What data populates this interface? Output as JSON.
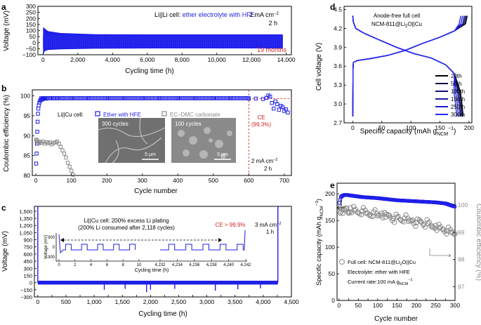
{
  "figure": {
    "width": 685,
    "height": 463
  },
  "colors": {
    "blue": "#1f1fe8",
    "gray": "#8a8a8a",
    "red": "#d22424",
    "black": "#000000"
  },
  "chart_data": [
    {
      "panel": "a",
      "type": "line",
      "xlabel": "Cycling time (h)",
      "ylabel": "Voltage (mV)",
      "xlim": [
        -300,
        14300
      ],
      "ylim": [
        -100,
        300
      ],
      "xticks": [
        0,
        2000,
        4000,
        6000,
        8000,
        10000,
        12000,
        14000
      ],
      "xtick_labels": [
        "0",
        "2,000",
        "4,000",
        "6,000",
        "8,000",
        "10,000",
        "12,000",
        "14,000"
      ],
      "yticks": [
        -100,
        -50,
        0,
        50,
        100,
        150,
        200,
        250,
        300
      ],
      "ytick_labels": [
        "−100",
        "−50",
        "0",
        "50",
        "100",
        "150",
        "200",
        "250",
        "300"
      ],
      "series": [
        {
          "name": "",
          "color": "#1f1fe8",
          "envelope": [
            [
              0,
              -100,
              130
            ],
            [
              100,
              -70,
              115
            ],
            [
              300,
              -60,
              95
            ],
            [
              1000,
              -55,
              80
            ],
            [
              3000,
              -50,
              70
            ],
            [
              6000,
              -48,
              68
            ],
            [
              10000,
              -48,
              68
            ],
            [
              13800,
              -48,
              68
            ]
          ]
        }
      ],
      "annotations": {
        "cell": "Li||Li cell: ",
        "electrolyte": "ether electrolyte with HFE",
        "current": "2 mA cm",
        "current_sup": "−2",
        "time": "2 h",
        "duration": "19 months"
      }
    },
    {
      "panel": "b",
      "type": "scatter",
      "xlabel": "Cycle number",
      "ylabel": "Coulombic efficiency (%)",
      "xlim": [
        -10,
        720
      ],
      "ylim": [
        80,
        101.5
      ],
      "xticks": [
        0,
        100,
        200,
        300,
        400,
        500,
        600,
        700
      ],
      "xtick_labels": [
        "0",
        "100",
        "200",
        "300",
        "400",
        "500",
        "600",
        "700"
      ],
      "yticks": [
        80,
        85,
        90,
        95,
        100
      ],
      "ytick_labels": [
        "80",
        "85",
        "90",
        "95",
        "100"
      ],
      "series": [
        {
          "name": "Ether with HFE",
          "color": "#1f1fe8",
          "marker": "square",
          "x": [
            1,
            2,
            3,
            4,
            5,
            6,
            7,
            8,
            10,
            12,
            14,
            17,
            20,
            25,
            30,
            40,
            50,
            60,
            75,
            100,
            150,
            200,
            250,
            300,
            350,
            400,
            450,
            500,
            550,
            600,
            620,
            640,
            650,
            655,
            660,
            665,
            670,
            675,
            680,
            685,
            690,
            695,
            700,
            705,
            710
          ],
          "y": [
            83,
            85.5,
            88,
            91,
            93.5,
            95.5,
            96.8,
            97.6,
            98.3,
            98.8,
            99.0,
            99.1,
            99.2,
            99.3,
            99.3,
            99.4,
            99.4,
            99.4,
            99.4,
            99.4,
            99.4,
            99.4,
            99.4,
            99.4,
            99.4,
            99.4,
            99.4,
            99.4,
            99.4,
            99.3,
            99.3,
            99.2,
            99.5,
            100.1,
            99.8,
            98.2,
            96.8,
            98.6,
            97.9,
            96.5,
            97.5,
            97.2,
            96.2,
            96.6,
            95.8
          ]
        },
        {
          "name": "EC–DMC carbonate",
          "color": "#8a8a8a",
          "marker": "square",
          "x": [
            1,
            3,
            5,
            8,
            10,
            15,
            20,
            25,
            30,
            35,
            40,
            45,
            50,
            55,
            60,
            65,
            70,
            75,
            80,
            85,
            90,
            95,
            100,
            105
          ],
          "y": [
            89,
            88.8,
            88.5,
            88,
            88.5,
            88.2,
            88.5,
            88,
            88.4,
            88.1,
            88.3,
            87.8,
            88.2,
            88.3,
            88.5,
            88,
            87.2,
            86.3,
            85.5,
            84.5,
            83.2,
            82.2,
            81.2,
            80.2
          ]
        }
      ],
      "cutoff_x": 600,
      "cutoff_y": 99.3,
      "annotations": {
        "cell": "Li||Cu cell:",
        "ce_label": "CE",
        "ce_value": "(99.3%)",
        "current": "2 mA cm",
        "current_sup": "−2",
        "time": "2 h",
        "inset1_label": "300 cycles",
        "inset2_label": "100 cycles",
        "scale1": "5 μm",
        "scale2": "5 μm"
      }
    },
    {
      "panel": "c",
      "type": "line",
      "xlabel": "Cycling time (h)",
      "ylabel": "Voltage (mV)",
      "xlim": [
        -60,
        4500
      ],
      "ylim": [
        -300,
        1600
      ],
      "xticks": [
        0,
        250,
        500,
        750,
        1000,
        1250,
        1500,
        1750,
        2000,
        2250,
        2500,
        2750,
        3000,
        3250,
        3500,
        3750,
        4000,
        4250,
        4500
      ],
      "xtick_labels": [
        "0",
        "",
        "500",
        "",
        "1,000",
        "",
        "1,500",
        "",
        "2,000",
        "",
        "2,500",
        "",
        "3,000",
        "",
        "3,500",
        "",
        "4,000",
        "",
        "4,500"
      ],
      "yticks": [
        -300,
        -150,
        0,
        150,
        300,
        450,
        600,
        750,
        900,
        1050,
        1200,
        1350,
        1500
      ],
      "ytick_labels": [
        "−300",
        "−150",
        "0",
        "150",
        "300",
        "450",
        "600",
        "750",
        "900",
        "1,050",
        "1,200",
        "1,350",
        "1,500"
      ],
      "series": [
        {
          "name": "",
          "color": "#1f1fe8",
          "band": [
            -40,
            40
          ],
          "spikes": [
            [
              0,
              1600
            ],
            [
              1180,
              -150
            ],
            [
              1550,
              -130
            ],
            [
              1930,
              -200
            ],
            [
              2000,
              -150
            ],
            [
              2430,
              -130
            ],
            [
              3150,
              -170
            ],
            [
              3550,
              -140
            ],
            [
              3950,
              -120
            ],
            [
              4260,
              1600
            ]
          ]
        }
      ],
      "annotations": {
        "title_line1": "Li||Cu cell: 200% excess Li plating",
        "title_line2": "(200% Li consumed after 2,118 cycles)",
        "ce": "CE > 99.9%",
        "current": "3 mA cm",
        "current_sup": "−2",
        "time": "1 h",
        "inset_ylabel": "Voltage (mV)",
        "inset_xlabel": "Cycling time (h)",
        "inset_left_xticks": [
          "0",
          "2",
          "4",
          "6",
          "8",
          "10"
        ],
        "inset_right_xticks": [
          "4,232",
          "4,234",
          "4,236",
          "4,238",
          "4,240",
          "4,242"
        ],
        "inset_yticks": [
          "300",
          "0",
          "−300"
        ]
      }
    },
    {
      "panel": "d",
      "type": "line",
      "xlabel": "Specific capacity (mAh g",
      "xlabel_sub": "NCM",
      "xlabel_sup": "−1",
      "xlabel_end": ")",
      "ylabel": "Cell voltage (V)",
      "xlim": [
        -15,
        205
      ],
      "ylim": [
        2.7,
        4.55
      ],
      "xticks": [
        0,
        50,
        100,
        150,
        200
      ],
      "xtick_labels": [
        "0",
        "50",
        "100",
        "150",
        "200"
      ],
      "yticks": [
        2.7,
        3.0,
        3.3,
        3.6,
        3.9,
        4.2,
        4.5
      ],
      "ytick_labels": [
        "2.7",
        "3.0",
        "3.3",
        "3.6",
        "3.9",
        "4.2",
        "4.5"
      ],
      "series": [
        {
          "name": "20th",
          "color": "#000000",
          "charge_cap": 197,
          "discharge_cap": 190
        },
        {
          "name": "50th",
          "color": "#0b0b40",
          "charge_cap": 196,
          "discharge_cap": 189
        },
        {
          "name": "100th",
          "color": "#121270",
          "charge_cap": 194,
          "discharge_cap": 187
        },
        {
          "name": "150th",
          "color": "#18189e",
          "charge_cap": 192,
          "discharge_cap": 185
        },
        {
          "name": "250th",
          "color": "#1d1dc8",
          "charge_cap": 189,
          "discharge_cap": 182
        },
        {
          "name": "300th",
          "color": "#2525ff",
          "charge_cap": 186,
          "discharge_cap": 179
        }
      ],
      "annotations": {
        "line1": "Anode-free full cell",
        "line2_a": "NCM-811@Li",
        "line2_sub": "2",
        "line2_b": "O||Cu"
      }
    },
    {
      "panel": "e",
      "type": "scatter",
      "xlabel": "Cycle number",
      "ylabel_left": "Specific capacity (mAh g",
      "ylabel_left_sub": "NCM",
      "ylabel_left_sup": "−1",
      "ylabel_left_end": ")",
      "ylabel_right": "Coulombic efficiency (%)",
      "xlim": [
        -5,
        300
      ],
      "ylim_left": [
        0,
        220
      ],
      "ylim_right": [
        96.5,
        100.8
      ],
      "xticks": [
        0,
        25,
        50,
        75,
        100,
        125,
        150,
        175,
        200,
        225,
        250,
        275,
        300
      ],
      "xtick_labels": [
        "0",
        "",
        "50",
        "",
        "100",
        "",
        "150",
        "",
        "200",
        "",
        "250",
        "",
        "300"
      ],
      "yticks_left": [
        0,
        50,
        100,
        150,
        200
      ],
      "ytick_labels_left": [
        "0",
        "50",
        "100",
        "150",
        "200"
      ],
      "yticks_right": [
        97,
        98,
        99,
        100
      ],
      "ytick_labels_right": [
        "97",
        "98",
        "99",
        "100"
      ],
      "series": [
        {
          "name": "Specific capacity",
          "color": "#1f1fe8",
          "marker": "square",
          "axis": "left",
          "x": [
            1,
            5,
            10,
            15,
            20,
            30,
            40,
            50,
            60,
            80,
            100,
            125,
            150,
            175,
            200,
            225,
            250,
            275,
            300
          ],
          "y": [
            183,
            194,
            197,
            198,
            198,
            197,
            196,
            195,
            194,
            193,
            192,
            190,
            188,
            187,
            186,
            185,
            184,
            182,
            176
          ]
        },
        {
          "name": "Coulombic efficiency",
          "color": "#8a8a8a",
          "marker": "circle",
          "axis": "right",
          "x": [
            1,
            5,
            10,
            15,
            20,
            25,
            30,
            40,
            50,
            60,
            70,
            80,
            90,
            100,
            110,
            120,
            130,
            140,
            150,
            160,
            170,
            180,
            190,
            200,
            210,
            220,
            230,
            240,
            250,
            260,
            270,
            280,
            290,
            300
          ],
          "y": [
            99.9,
            99.75,
            99.7,
            99.82,
            99.88,
            99.7,
            99.9,
            99.8,
            99.72,
            99.78,
            99.7,
            99.65,
            99.75,
            99.6,
            99.7,
            99.55,
            99.62,
            99.5,
            99.55,
            99.45,
            99.52,
            99.4,
            99.45,
            99.35,
            99.4,
            99.3,
            99.32,
            99.2,
            99.25,
            99.15,
            99.1,
            99.05,
            99.0,
            98.95
          ]
        }
      ],
      "annotations": {
        "line1_a": "Full cell: NCM-811@Li",
        "line1_sub": "2",
        "line1_b": "O||Cu",
        "line2": "Electrolyte: ether with HFE",
        "line3_a": "Current rate:100 mA g",
        "line3_sub": "NCM",
        "line3_sup": "−1"
      }
    }
  ]
}
